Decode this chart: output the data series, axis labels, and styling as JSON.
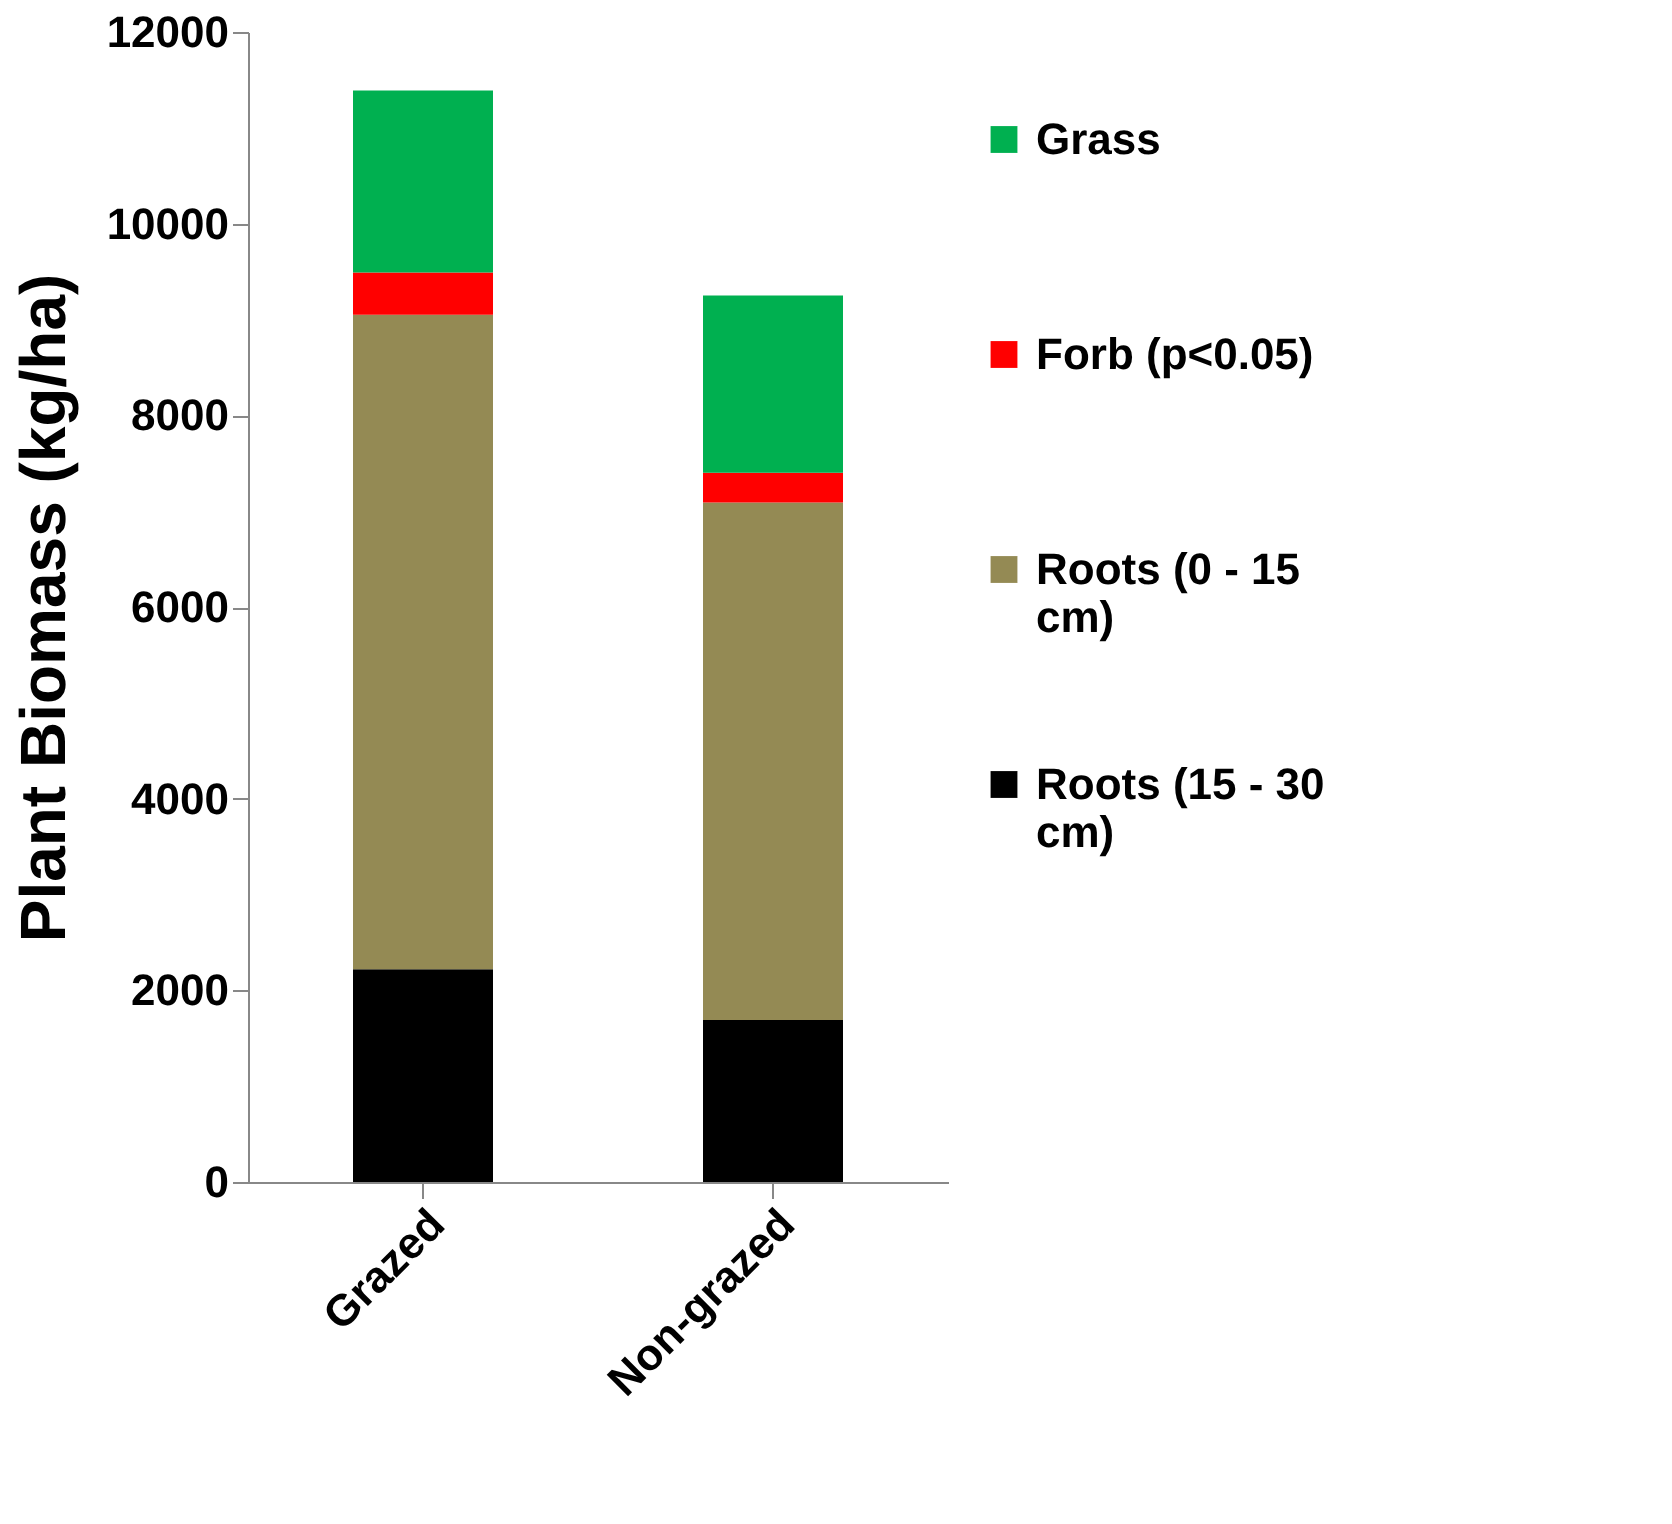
{
  "chart_data": {
    "type": "bar",
    "stacked": true,
    "ylabel": "Plant Biomass (kg/ha)",
    "categories": [
      "Grazed",
      "Non-grazed"
    ],
    "series": [
      {
        "name": "Roots (15 - 30 cm)",
        "color": "#000000",
        "values": [
          2220,
          1690
        ]
      },
      {
        "name": "Roots (0 - 15 cm)",
        "color": "#948a54",
        "values": [
          6830,
          5400
        ]
      },
      {
        "name": "Forb (p<0.05)",
        "color": "#ff0000",
        "values": [
          440,
          310
        ]
      },
      {
        "name": "Grass",
        "color": "#00b050",
        "values": [
          1900,
          1850
        ]
      }
    ],
    "ylim": [
      0,
      12000
    ],
    "yticks": [
      0,
      2000,
      4000,
      6000,
      8000,
      10000,
      12000
    ],
    "grid": false,
    "legend": "right"
  }
}
